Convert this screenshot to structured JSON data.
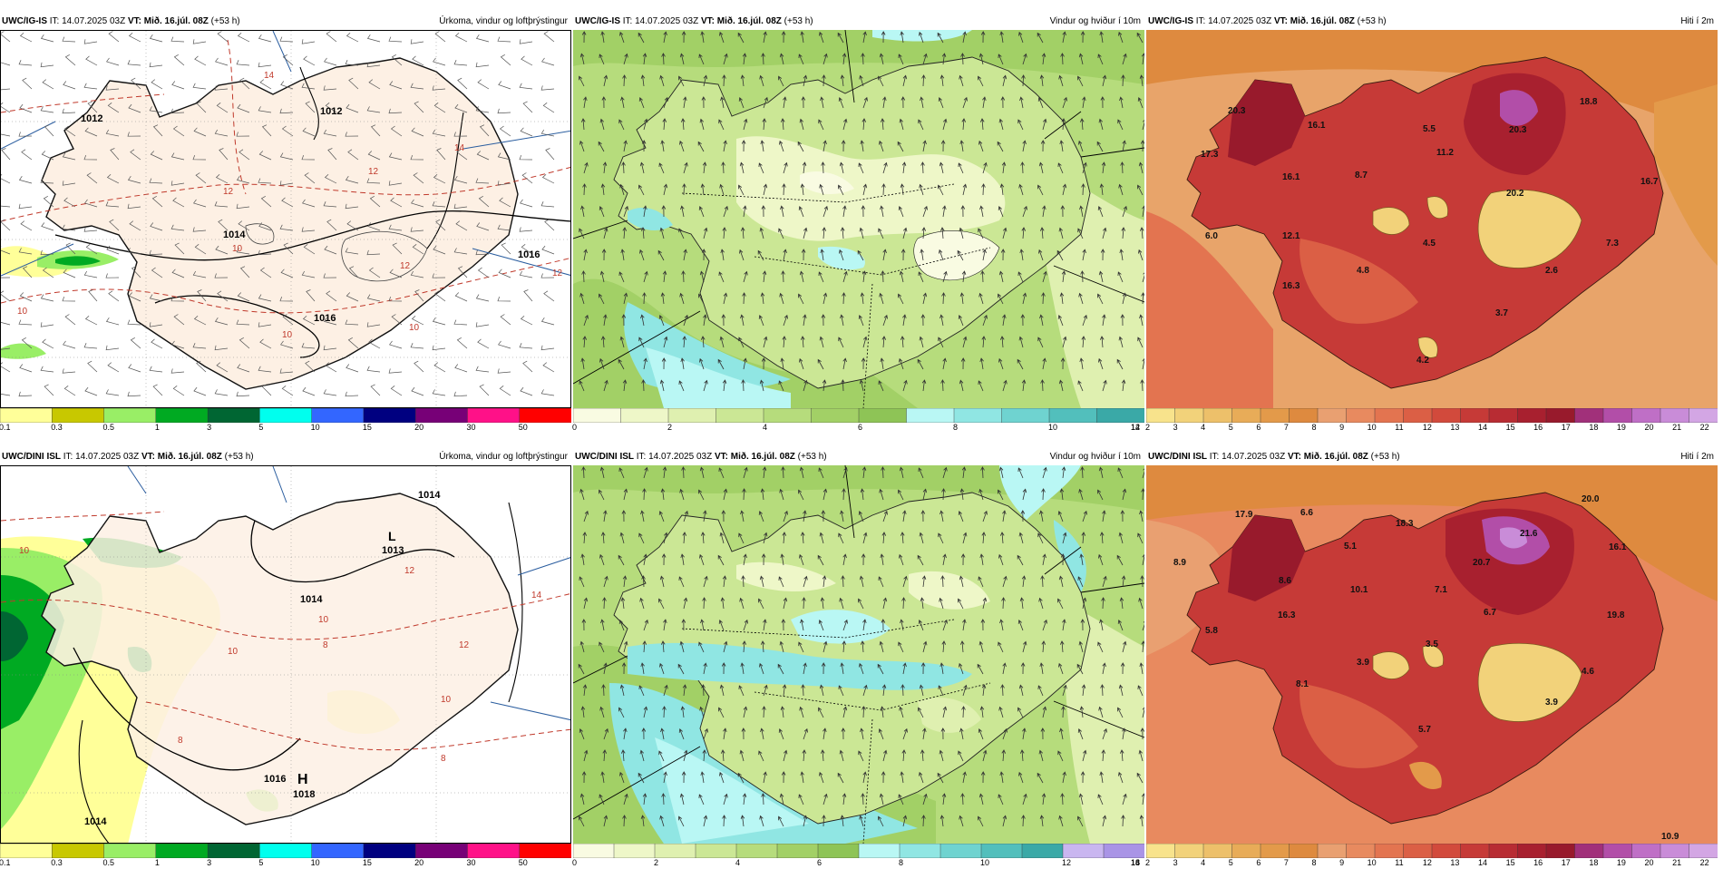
{
  "panels": [
    {
      "id": "igis-precip",
      "model": "UWC/IG-IS",
      "it_label": "IT:",
      "it_value": "14.07.2025 03Z",
      "vt_label": "VT:",
      "vt_value": "Mið. 16.júl. 08Z",
      "lead": "(+53 h)",
      "field": "Úrkoma, vindur og loftþrýstingur",
      "colorbar_colors": [
        "#ffff99",
        "#c8c800",
        "#99ee66",
        "#00aa22",
        "#006633",
        "#00ffee",
        "#3366ff",
        "#000080",
        "#770077",
        "#ff1188",
        "#ff0000"
      ],
      "colorbar_ticks": [
        "0.1",
        "0.3",
        "0.5",
        "1",
        "3",
        "5",
        "10",
        "15",
        "20",
        "30",
        "50"
      ],
      "pressure_labels": [
        "1012",
        "1012",
        "1014",
        "1016",
        "1016"
      ],
      "isotherm_labels": [
        "14",
        "12",
        "12",
        "12",
        "10",
        "10",
        "10",
        "10",
        "12",
        "14"
      ]
    },
    {
      "id": "igis-wind",
      "model": "UWC/IG-IS",
      "it_label": "IT:",
      "it_value": "14.07.2025 03Z",
      "vt_label": "VT:",
      "vt_value": "Mið. 16.júl. 08Z",
      "lead": "(+53 h)",
      "field": "Vindur og hviður í 10m",
      "colorbar_colors": [
        "#f9fbe2",
        "#eef7c8",
        "#dff0b0",
        "#cbe795",
        "#b6dc7c",
        "#a2d066",
        "#8ec456",
        "#b9f7f4",
        "#90e6e3",
        "#6fd3d0",
        "#52bfbc",
        "#3aa9a7"
      ],
      "colorbar_ticks": [
        "0",
        "2",
        "4",
        "6",
        "8",
        "10",
        "12",
        "14"
      ]
    },
    {
      "id": "igis-temp",
      "model": "UWC/IG-IS",
      "it_label": "IT:",
      "it_value": "14.07.2025 03Z",
      "vt_label": "VT:",
      "vt_value": "Mið. 16.júl. 08Z",
      "lead": "(+53 h)",
      "field": "Hiti í 2m",
      "colorbar_colors": [
        "#f8e38c",
        "#f2d27a",
        "#edc06a",
        "#e8ac58",
        "#e39a4a",
        "#de8a3f",
        "#e9a071",
        "#e88a5f",
        "#e37450",
        "#db5f45",
        "#d24a3c",
        "#c63a37",
        "#b82c33",
        "#a8202f",
        "#981a2c",
        "#a1307a",
        "#b24ea8",
        "#bf6fc6",
        "#c98cd8",
        "#d3a6e4"
      ],
      "colorbar_ticks": [
        "2",
        "3",
        "4",
        "5",
        "6",
        "7",
        "8",
        "9",
        "10",
        "11",
        "12",
        "13",
        "14",
        "15",
        "16",
        "17",
        "18",
        "19",
        "20",
        "21",
        "22"
      ],
      "temp_labels": [
        "20.3",
        "16.1",
        "5.5",
        "20.3",
        "18.8",
        "17.3",
        "16.1",
        "8.7",
        "11.2",
        "20.2",
        "16.7",
        "6.0",
        "12.1",
        "4.5",
        "7.3",
        "4.8",
        "2.6",
        "16.3",
        "3.7",
        "4.2"
      ]
    },
    {
      "id": "dini-precip",
      "model": "UWC/DINI ISL",
      "it_label": "IT:",
      "it_value": "14.07.2025 03Z",
      "vt_label": "VT:",
      "vt_value": "Mið. 16.júl. 08Z",
      "lead": "(+53 h)",
      "field": "Úrkoma, vindur og loftþrýstingur",
      "colorbar_colors": [
        "#ffff99",
        "#c8c800",
        "#99ee66",
        "#00aa22",
        "#006633",
        "#00ffee",
        "#3366ff",
        "#000080",
        "#770077",
        "#ff1188",
        "#ff0000"
      ],
      "colorbar_ticks": [
        "0.1",
        "0.3",
        "0.5",
        "1",
        "3",
        "5",
        "10",
        "15",
        "20",
        "30",
        "50"
      ],
      "low_letter": "L",
      "low_value": "1013",
      "high_letter": "H",
      "high_value": "1018",
      "pressure_labels": [
        "1014",
        "1014",
        "1016",
        "1014"
      ],
      "isotherm_labels": [
        "10",
        "12",
        "14",
        "10",
        "8",
        "10",
        "12",
        "10",
        "8",
        "8"
      ]
    },
    {
      "id": "dini-wind",
      "model": "UWC/DINI ISL",
      "it_label": "IT:",
      "it_value": "14.07.2025 03Z",
      "vt_label": "VT:",
      "vt_value": "Mið. 16.júl. 08Z",
      "lead": "(+53 h)",
      "field": "Vindur og hviður í 10m",
      "colorbar_colors": [
        "#f9fbe2",
        "#eef7c8",
        "#dff0b0",
        "#cbe795",
        "#b6dc7c",
        "#a2d066",
        "#8ec456",
        "#b9f7f4",
        "#90e6e3",
        "#6fd3d0",
        "#52bfbc",
        "#3aa9a7",
        "#c9b6f0",
        "#a994e6"
      ],
      "colorbar_ticks": [
        "0",
        "2",
        "4",
        "6",
        "8",
        "10",
        "12",
        "14",
        "16",
        "18"
      ]
    },
    {
      "id": "dini-temp",
      "model": "UWC/DINI ISL",
      "it_label": "IT:",
      "it_value": "14.07.2025 03Z",
      "vt_label": "VT:",
      "vt_value": "Mið. 16.júl. 08Z",
      "lead": "(+53 h)",
      "field": "Hiti í 2m",
      "colorbar_colors": [
        "#f8e38c",
        "#f2d27a",
        "#edc06a",
        "#e8ac58",
        "#e39a4a",
        "#de8a3f",
        "#e9a071",
        "#e88a5f",
        "#e37450",
        "#db5f45",
        "#d24a3c",
        "#c63a37",
        "#b82c33",
        "#a8202f",
        "#981a2c",
        "#a1307a",
        "#b24ea8",
        "#bf6fc6",
        "#c98cd8",
        "#d3a6e4"
      ],
      "colorbar_ticks": [
        "2",
        "3",
        "4",
        "5",
        "6",
        "7",
        "8",
        "9",
        "10",
        "11",
        "12",
        "13",
        "14",
        "15",
        "16",
        "17",
        "18",
        "19",
        "20",
        "21",
        "22"
      ],
      "temp_labels": [
        "20.0",
        "17.9",
        "6.6",
        "18.3",
        "21.6",
        "16.1",
        "8.9",
        "5.1",
        "20.7",
        "8.6",
        "10.1",
        "7.1",
        "5.8",
        "16.3",
        "6.7",
        "19.8",
        "3.5",
        "3.9",
        "4.6",
        "8.1",
        "3.9",
        "5.7",
        "10.9"
      ]
    }
  ]
}
